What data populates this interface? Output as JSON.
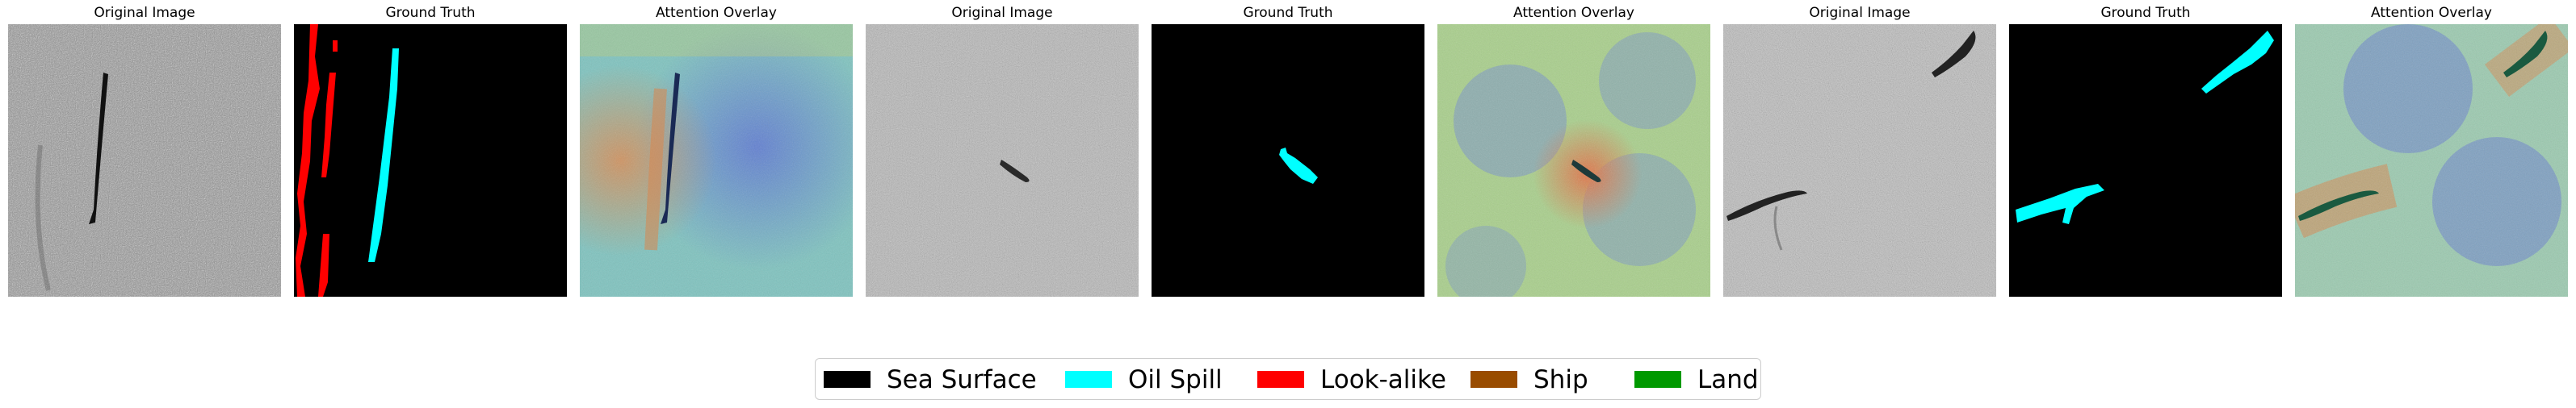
{
  "panels": [
    {
      "title": "Original Image",
      "kind": "original",
      "variant": 1
    },
    {
      "title": "Ground Truth",
      "kind": "ground_truth",
      "variant": 1
    },
    {
      "title": "Attention Overlay",
      "kind": "attention",
      "variant": 1
    },
    {
      "title": "Original Image",
      "kind": "original",
      "variant": 2
    },
    {
      "title": "Ground Truth",
      "kind": "ground_truth",
      "variant": 2
    },
    {
      "title": "Attention Overlay",
      "kind": "attention",
      "variant": 2
    },
    {
      "title": "Original Image",
      "kind": "original",
      "variant": 3
    },
    {
      "title": "Ground Truth",
      "kind": "ground_truth",
      "variant": 3
    },
    {
      "title": "Attention Overlay",
      "kind": "attention",
      "variant": 3
    }
  ],
  "legend": {
    "items": [
      {
        "label": "Sea Surface",
        "color": "#000000"
      },
      {
        "label": "Oil Spill",
        "color": "#00ffff"
      },
      {
        "label": "Look-alike",
        "color": "#ff0000"
      },
      {
        "label": "Ship",
        "color": "#994c00"
      },
      {
        "label": "Land",
        "color": "#009900"
      }
    ]
  }
}
